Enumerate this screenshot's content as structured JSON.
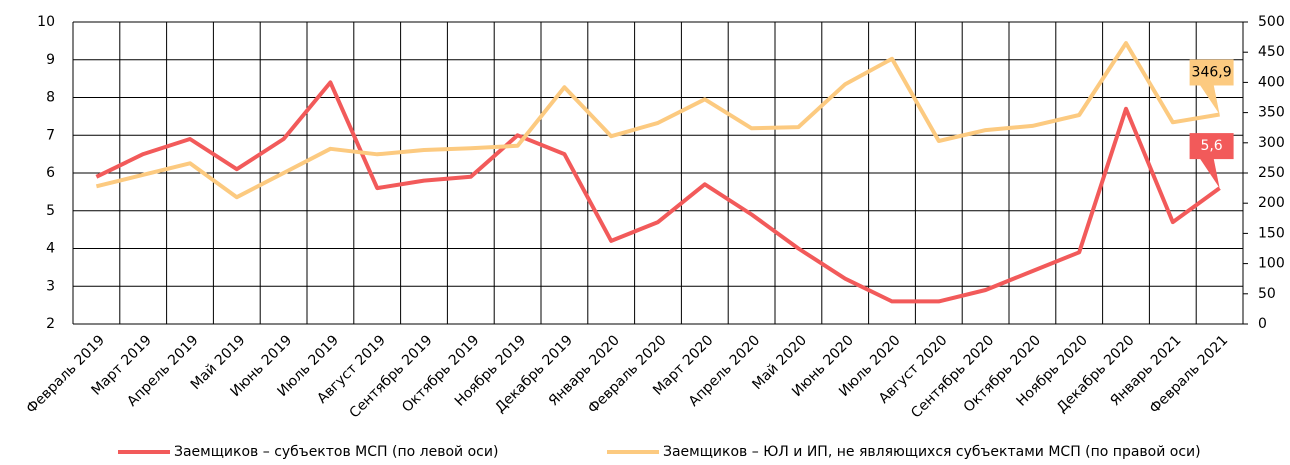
{
  "chart_data": {
    "type": "line",
    "categories": [
      "Февраль 2019",
      "Март 2019",
      "Апрель 2019",
      "Май 2019",
      "Июнь 2019",
      "Июль 2019",
      "Август 2019",
      "Сентябрь 2019",
      "Октябрь 2019",
      "Ноябрь 2019",
      "Декабрь 2019",
      "Январь 2020",
      "Февраль 2020",
      "Март 2020",
      "Апрель 2020",
      "Май 2020",
      "Июнь 2020",
      "Июль 2020",
      "Август 2020",
      "Сентябрь 2020",
      "Октябрь 2020",
      "Ноябрь 2020",
      "Декабрь 2020",
      "Январь 2021",
      "Февраль 2021"
    ],
    "series": [
      {
        "name": "Заемщиков – субъектов МСП (по левой оси)",
        "color": "#f25a5a",
        "axis": "y",
        "values": [
          5.9,
          6.5,
          6.9,
          6.1,
          6.9,
          8.4,
          5.6,
          5.8,
          5.9,
          7.0,
          6.5,
          4.2,
          4.7,
          5.7,
          4.9,
          4.0,
          3.2,
          2.6,
          2.6,
          2.9,
          3.4,
          3.9,
          7.7,
          4.7,
          5.6
        ],
        "value_labels": [
          null,
          null,
          null,
          null,
          null,
          null,
          null,
          null,
          null,
          null,
          null,
          null,
          null,
          null,
          null,
          null,
          null,
          null,
          null,
          null,
          null,
          null,
          null,
          null,
          "5,6"
        ]
      },
      {
        "name": "Заемщиков – ЮЛ и ИП, не являющихся субъектами МСП (по правой оси)",
        "color": "#fcca80",
        "axis": "y2",
        "values": [
          228,
          247,
          266,
          210,
          250,
          290,
          281,
          288,
          291,
          295,
          392,
          311,
          333,
          372,
          324,
          326,
          397,
          439,
          303,
          321,
          328,
          346,
          465,
          334,
          346.9
        ],
        "value_labels": [
          null,
          null,
          null,
          null,
          null,
          null,
          null,
          null,
          null,
          null,
          null,
          null,
          null,
          null,
          null,
          null,
          null,
          null,
          null,
          null,
          null,
          null,
          null,
          null,
          "346,9"
        ]
      }
    ],
    "ylim": [
      2,
      10
    ],
    "yticks": [
      2,
      3,
      4,
      5,
      6,
      7,
      8,
      9,
      10
    ],
    "y2lim": [
      0,
      500
    ],
    "y2ticks": [
      0,
      50,
      100,
      150,
      200,
      250,
      300,
      350,
      400,
      450,
      500
    ],
    "grid": true
  }
}
